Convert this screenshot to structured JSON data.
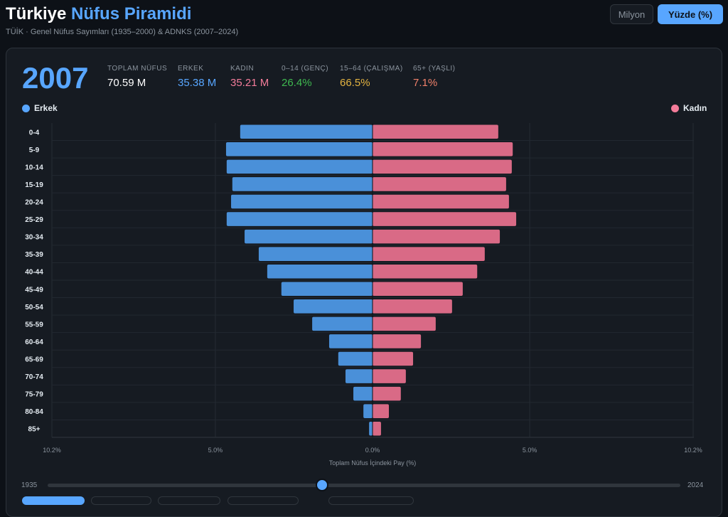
{
  "header": {
    "title_part1": "Türkiye",
    "title_part2": "Nüfus Piramidi",
    "subtitle": "TÜİK · Genel Nüfus Sayımları (1935–2000) & ADNKS (2007–2024)",
    "btn_million": "Milyon",
    "btn_percent": "Yüzde (%)"
  },
  "stats": {
    "year": "2007",
    "items": [
      {
        "label": "TOPLAM NÜFUS",
        "value": "70.59 M",
        "color": "#ffffff"
      },
      {
        "label": "ERKEK",
        "value": "35.38 M",
        "color": "#58a6ff"
      },
      {
        "label": "KADIN",
        "value": "35.21 M",
        "color": "#f47c9a"
      },
      {
        "label": "0–14 (GENÇ)",
        "value": "26.4%",
        "color": "#3fb950"
      },
      {
        "label": "15–64 (ÇALIŞMA)",
        "value": "66.5%",
        "color": "#e3b341"
      },
      {
        "label": "65+ (YAŞLI)",
        "value": "7.1%",
        "color": "#f0806a"
      }
    ]
  },
  "slider": {
    "min_label": "1935",
    "max_label": "2024",
    "value": "2007",
    "fraction": 0.434
  },
  "chart_data": {
    "type": "bar",
    "orientation": "horizontal-pyramid",
    "xlabel": "Toplam Nüfus İçindeki Pay (%)",
    "xlim": [
      -10.2,
      10.2
    ],
    "xticks": [
      "10.2%",
      "5.0%",
      "0.0%",
      "5.0%",
      "10.2%"
    ],
    "xtick_values": [
      -10.2,
      -5,
      0,
      5,
      10.2
    ],
    "legend": {
      "left": "Erkek",
      "right": "Kadın"
    },
    "categories": [
      "0-4",
      "5-9",
      "10-14",
      "15-19",
      "20-24",
      "25-29",
      "30-34",
      "35-39",
      "40-44",
      "45-49",
      "50-54",
      "55-59",
      "60-64",
      "65-69",
      "70-74",
      "75-79",
      "80-84",
      "85+"
    ],
    "series": [
      {
        "name": "Erkek",
        "color": "#4a90d9",
        "values": [
          4.21,
          4.66,
          4.64,
          4.46,
          4.5,
          4.64,
          4.07,
          3.62,
          3.35,
          2.9,
          2.51,
          1.92,
          1.38,
          1.09,
          0.86,
          0.61,
          0.29,
          0.11
        ]
      },
      {
        "name": "Kadın",
        "color": "#d96a86",
        "values": [
          4.0,
          4.46,
          4.43,
          4.25,
          4.34,
          4.57,
          4.05,
          3.57,
          3.33,
          2.87,
          2.53,
          2.01,
          1.54,
          1.29,
          1.06,
          0.9,
          0.52,
          0.27
        ]
      }
    ]
  }
}
